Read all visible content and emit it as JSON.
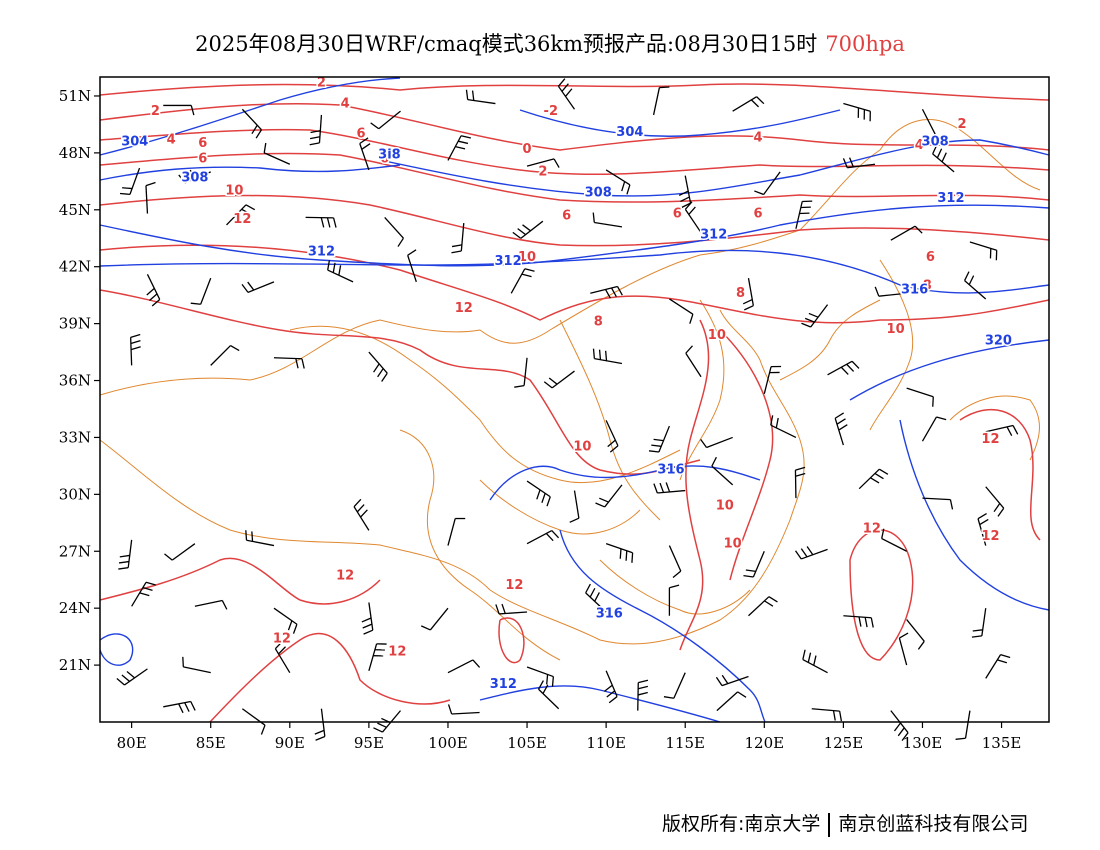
{
  "title": {
    "main": "2025年08月30日WRF/cmaq模式36km预报产品:08月30日15时",
    "level": "700hpa"
  },
  "axes": {
    "lat_labels": [
      "51N",
      "48N",
      "45N",
      "42N",
      "39N",
      "36N",
      "33N",
      "30N",
      "27N",
      "24N",
      "21N"
    ],
    "lat_values": [
      51,
      48,
      45,
      42,
      39,
      36,
      33,
      30,
      27,
      24,
      21
    ],
    "lon_labels": [
      "80E",
      "85E",
      "90E",
      "95E",
      "100E",
      "105E",
      "110E",
      "115E",
      "120E",
      "125E",
      "130E",
      "135E"
    ],
    "lon_values": [
      80,
      85,
      90,
      95,
      100,
      105,
      110,
      115,
      120,
      125,
      130,
      135
    ],
    "lon_range": [
      78,
      138
    ],
    "lat_range": [
      18,
      52
    ]
  },
  "contours": {
    "temperature_color": "#e04040",
    "height_color": "#2040e0",
    "boundary_color": "#e08830",
    "temperature_labels": [
      {
        "text": "2",
        "lon": 92,
        "lat": 51.5
      },
      {
        "text": "2",
        "lon": 81.5,
        "lat": 50
      },
      {
        "text": "-2",
        "lon": 106.5,
        "lat": 50
      },
      {
        "text": "4",
        "lon": 93.5,
        "lat": 50.4
      },
      {
        "text": "4",
        "lon": 82.5,
        "lat": 48.5
      },
      {
        "text": "0",
        "lon": 105,
        "lat": 48
      },
      {
        "text": "6",
        "lon": 84.5,
        "lat": 48.3
      },
      {
        "text": "6",
        "lon": 84.5,
        "lat": 47.5
      },
      {
        "text": "6",
        "lon": 94.5,
        "lat": 48.8
      },
      {
        "text": "6",
        "lon": 96,
        "lat": 47.5
      },
      {
        "text": "2",
        "lon": 106,
        "lat": 46.8
      },
      {
        "text": "10",
        "lon": 86.5,
        "lat": 45.8
      },
      {
        "text": "6",
        "lon": 107.5,
        "lat": 44.5
      },
      {
        "text": "6",
        "lon": 114.5,
        "lat": 44.6
      },
      {
        "text": "6",
        "lon": 119.6,
        "lat": 44.6
      },
      {
        "text": "12",
        "lon": 87,
        "lat": 44.3
      },
      {
        "text": "4",
        "lon": 119.6,
        "lat": 48.6
      },
      {
        "text": "2",
        "lon": 132.5,
        "lat": 49.3
      },
      {
        "text": "4",
        "lon": 129.8,
        "lat": 48.2
      },
      {
        "text": "10",
        "lon": 105,
        "lat": 42.3
      },
      {
        "text": "6",
        "lon": 130.5,
        "lat": 42.3
      },
      {
        "text": "8",
        "lon": 118.5,
        "lat": 40.4
      },
      {
        "text": "8",
        "lon": 130.3,
        "lat": 40.8
      },
      {
        "text": "12",
        "lon": 101,
        "lat": 39.6
      },
      {
        "text": "8",
        "lon": 109.5,
        "lat": 38.9
      },
      {
        "text": "10",
        "lon": 117,
        "lat": 38.2
      },
      {
        "text": "10",
        "lon": 128.3,
        "lat": 38.5
      },
      {
        "text": "10",
        "lon": 108.5,
        "lat": 32.3
      },
      {
        "text": "12",
        "lon": 134.3,
        "lat": 32.7
      },
      {
        "text": "10",
        "lon": 117.5,
        "lat": 29.2
      },
      {
        "text": "10",
        "lon": 118,
        "lat": 27.2
      },
      {
        "text": "12",
        "lon": 126.8,
        "lat": 28
      },
      {
        "text": "12",
        "lon": 134.3,
        "lat": 27.6
      },
      {
        "text": "12",
        "lon": 93.5,
        "lat": 25.5
      },
      {
        "text": "12",
        "lon": 104.2,
        "lat": 25
      },
      {
        "text": "12",
        "lon": 89.5,
        "lat": 22.2
      },
      {
        "text": "12",
        "lon": 96.8,
        "lat": 21.5
      }
    ],
    "height_labels": [
      {
        "text": "304",
        "lon": 80.2,
        "lat": 48.4
      },
      {
        "text": "304",
        "lon": 111.5,
        "lat": 48.9
      },
      {
        "text": "308",
        "lon": 130.8,
        "lat": 48.4
      },
      {
        "text": "308",
        "lon": 84,
        "lat": 46.5
      },
      {
        "text": "308",
        "lon": 109.5,
        "lat": 45.7
      },
      {
        "text": "3i8",
        "lon": 96.3,
        "lat": 47.7
      },
      {
        "text": "312",
        "lon": 131.8,
        "lat": 45.4
      },
      {
        "text": "312",
        "lon": 116.8,
        "lat": 43.5
      },
      {
        "text": "312",
        "lon": 92,
        "lat": 42.6
      },
      {
        "text": "312",
        "lon": 103.8,
        "lat": 42.1
      },
      {
        "text": "316",
        "lon": 129.5,
        "lat": 40.6
      },
      {
        "text": "320",
        "lon": 134.8,
        "lat": 37.9
      },
      {
        "text": "316",
        "lon": 114.1,
        "lat": 31.1
      },
      {
        "text": "316",
        "lon": 110.2,
        "lat": 23.5
      },
      {
        "text": "312",
        "lon": 103.5,
        "lat": 19.8
      }
    ]
  },
  "wind_barbs": [
    {
      "lon": 82,
      "lat": 50.5
    },
    {
      "lon": 87,
      "lat": 50.3
    },
    {
      "lon": 92,
      "lat": 50
    },
    {
      "lon": 97,
      "lat": 50.2
    },
    {
      "lon": 103,
      "lat": 50.6
    },
    {
      "lon": 108,
      "lat": 50.3
    },
    {
      "lon": 113,
      "lat": 50
    },
    {
      "lon": 118,
      "lat": 50.2
    },
    {
      "lon": 125,
      "lat": 50.6
    },
    {
      "lon": 130,
      "lat": 50.3
    },
    {
      "lon": 80.5,
      "lat": 47.2
    },
    {
      "lon": 85,
      "lat": 47
    },
    {
      "lon": 90,
      "lat": 47.4
    },
    {
      "lon": 95,
      "lat": 47.1
    },
    {
      "lon": 100,
      "lat": 47.6
    },
    {
      "lon": 105,
      "lat": 47.3
    },
    {
      "lon": 110,
      "lat": 47.1
    },
    {
      "lon": 115,
      "lat": 46.8
    },
    {
      "lon": 121,
      "lat": 47
    },
    {
      "lon": 127,
      "lat": 47.4
    },
    {
      "lon": 132,
      "lat": 47
    },
    {
      "lon": 81,
      "lat": 44.8
    },
    {
      "lon": 86,
      "lat": 44.2
    },
    {
      "lon": 91,
      "lat": 44.6
    },
    {
      "lon": 96,
      "lat": 44.6
    },
    {
      "lon": 101,
      "lat": 44.3
    },
    {
      "lon": 106,
      "lat": 44.4
    },
    {
      "lon": 111,
      "lat": 44.1
    },
    {
      "lon": 116,
      "lat": 43.8
    },
    {
      "lon": 122,
      "lat": 44
    },
    {
      "lon": 128,
      "lat": 43.4
    },
    {
      "lon": 133,
      "lat": 43.3
    },
    {
      "lon": 81,
      "lat": 41.6
    },
    {
      "lon": 85,
      "lat": 41.4
    },
    {
      "lon": 89,
      "lat": 41.2
    },
    {
      "lon": 94,
      "lat": 41.2
    },
    {
      "lon": 98,
      "lat": 41.2
    },
    {
      "lon": 104,
      "lat": 40.6
    },
    {
      "lon": 109,
      "lat": 40.6
    },
    {
      "lon": 114,
      "lat": 40.3
    },
    {
      "lon": 119,
      "lat": 41.4
    },
    {
      "lon": 124,
      "lat": 40
    },
    {
      "lon": 129,
      "lat": 40.6
    },
    {
      "lon": 134,
      "lat": 40.3
    },
    {
      "lon": 80,
      "lat": 36.8
    },
    {
      "lon": 85,
      "lat": 36.8
    },
    {
      "lon": 89,
      "lat": 37.2
    },
    {
      "lon": 95,
      "lat": 37.5
    },
    {
      "lon": 105,
      "lat": 37.2
    },
    {
      "lon": 108,
      "lat": 36.5
    },
    {
      "lon": 111,
      "lat": 36.9
    },
    {
      "lon": 116,
      "lat": 36.2
    },
    {
      "lon": 120,
      "lat": 35.3
    },
    {
      "lon": 124,
      "lat": 36.3
    },
    {
      "lon": 129,
      "lat": 35.6
    },
    {
      "lon": 110,
      "lat": 33.9
    },
    {
      "lon": 114,
      "lat": 33.6
    },
    {
      "lon": 118,
      "lat": 33
    },
    {
      "lon": 122,
      "lat": 33
    },
    {
      "lon": 125,
      "lat": 32.6
    },
    {
      "lon": 130,
      "lat": 32.8
    },
    {
      "lon": 134,
      "lat": 33.3
    },
    {
      "lon": 105,
      "lat": 30.7
    },
    {
      "lon": 108,
      "lat": 30.2
    },
    {
      "lon": 111,
      "lat": 30.5
    },
    {
      "lon": 115,
      "lat": 30.2
    },
    {
      "lon": 118,
      "lat": 30.5
    },
    {
      "lon": 122,
      "lat": 29.8
    },
    {
      "lon": 126,
      "lat": 30.3
    },
    {
      "lon": 130,
      "lat": 29.8
    },
    {
      "lon": 134,
      "lat": 30.4
    },
    {
      "lon": 80,
      "lat": 27.6
    },
    {
      "lon": 84,
      "lat": 27.4
    },
    {
      "lon": 89,
      "lat": 27.3
    },
    {
      "lon": 95,
      "lat": 28.1
    },
    {
      "lon": 100,
      "lat": 27.3
    },
    {
      "lon": 105,
      "lat": 27.4
    },
    {
      "lon": 110,
      "lat": 27.4
    },
    {
      "lon": 114,
      "lat": 27.3
    },
    {
      "lon": 120,
      "lat": 27
    },
    {
      "lon": 124,
      "lat": 27.1
    },
    {
      "lon": 129,
      "lat": 27
    },
    {
      "lon": 134,
      "lat": 27.3
    },
    {
      "lon": 80,
      "lat": 24.1
    },
    {
      "lon": 84,
      "lat": 24.1
    },
    {
      "lon": 89,
      "lat": 24
    },
    {
      "lon": 95,
      "lat": 24.3
    },
    {
      "lon": 100,
      "lat": 24
    },
    {
      "lon": 105,
      "lat": 23.8
    },
    {
      "lon": 110,
      "lat": 23.8
    },
    {
      "lon": 114,
      "lat": 23.6
    },
    {
      "lon": 119,
      "lat": 23.6
    },
    {
      "lon": 125,
      "lat": 23.6
    },
    {
      "lon": 129,
      "lat": 23.4
    },
    {
      "lon": 134,
      "lat": 24
    },
    {
      "lon": 81,
      "lat": 20.8
    },
    {
      "lon": 85,
      "lat": 20.6
    },
    {
      "lon": 90,
      "lat": 20.6
    },
    {
      "lon": 95,
      "lat": 20.7
    },
    {
      "lon": 100,
      "lat": 20.6
    },
    {
      "lon": 105,
      "lat": 20.9
    },
    {
      "lon": 110,
      "lat": 20.7
    },
    {
      "lon": 115,
      "lat": 20.6
    },
    {
      "lon": 119,
      "lat": 20.4
    },
    {
      "lon": 124,
      "lat": 20.6
    },
    {
      "lon": 129,
      "lat": 21
    },
    {
      "lon": 134,
      "lat": 20.3
    },
    {
      "lon": 82,
      "lat": 18.8
    },
    {
      "lon": 87,
      "lat": 18.7
    },
    {
      "lon": 92,
      "lat": 18.7
    },
    {
      "lon": 97,
      "lat": 18.6
    },
    {
      "lon": 102,
      "lat": 18.5
    },
    {
      "lon": 107,
      "lat": 18.7
    },
    {
      "lon": 112,
      "lat": 18.6
    },
    {
      "lon": 117,
      "lat": 18.6
    },
    {
      "lon": 123,
      "lat": 18.7
    },
    {
      "lon": 128,
      "lat": 18.6
    },
    {
      "lon": 133,
      "lat": 18.6
    }
  ],
  "footer": {
    "left": "版权所有:南京大学",
    "right": "南京创蓝科技有限公司"
  }
}
